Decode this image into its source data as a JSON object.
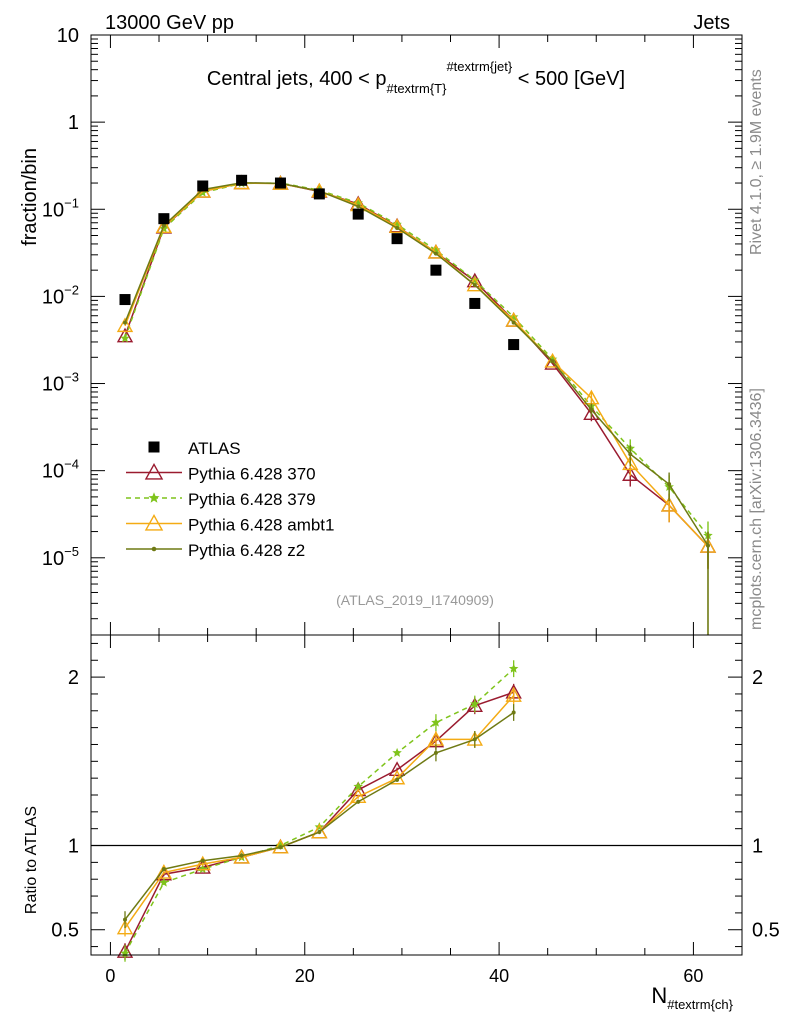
{
  "header": {
    "left": "13000 GeV pp",
    "right": "Jets"
  },
  "side_labels": {
    "rivet": "Rivet 4.1.0, ≥ 1.9M events",
    "mcplots": "mcplots.cern.ch [arXiv:1306.3436]"
  },
  "analysis_id": "(ATLAS_2019_I1740909)",
  "chart_data": [
    {
      "type": "scatter",
      "name": "main",
      "title_parts": [
        "Central jets, 400 < p",
        "#textrm{T}",
        "#textrm{jet}",
        " < 500 [GeV]"
      ],
      "ylabel": "fraction/bin",
      "xlabel_parts": [
        "N",
        "#textrm{ch}"
      ],
      "yscale": "log",
      "ylim": [
        1.3e-06,
        10
      ],
      "xlim": [
        -2,
        65
      ],
      "x_ticks": [
        0,
        20,
        40,
        60
      ],
      "y_tick_labels": [
        {
          "v": 10,
          "label": "10"
        },
        {
          "v": 1,
          "label": "1"
        },
        {
          "v": 0.1,
          "base": "10",
          "exp": "−1"
        },
        {
          "v": 0.01,
          "base": "10",
          "exp": "−2"
        },
        {
          "v": 0.001,
          "base": "10",
          "exp": "−3"
        },
        {
          "v": 0.0001,
          "base": "10",
          "exp": "−4"
        },
        {
          "v": 1e-05,
          "base": "10",
          "exp": "−5"
        }
      ],
      "x": [
        1.5,
        5.5,
        9.5,
        13.5,
        17.5,
        21.5,
        25.5,
        29.5,
        33.5,
        37.5,
        41.5,
        45.5,
        49.5,
        53.5,
        57.5,
        61.5
      ],
      "data": {
        "name": "ATLAS",
        "y": [
          0.0092,
          0.078,
          0.185,
          0.215,
          0.2,
          0.15,
          0.088,
          0.046,
          0.02,
          0.0083,
          0.0028
        ]
      },
      "series": [
        {
          "name": "Pythia 6.428 370",
          "color": "#9a1b2f",
          "marker": "triangle-open",
          "dash": "",
          "y": [
            0.0035,
            0.062,
            0.16,
            0.2,
            0.198,
            0.16,
            0.115,
            0.064,
            0.032,
            0.015,
            0.0053,
            0.0017,
            0.00045,
            9e-05,
            4e-05,
            1.35e-05
          ]
        },
        {
          "name": "Pythia 6.428 379",
          "color": "#7fc41c",
          "marker": "star",
          "dash": "5,4",
          "y": [
            0.0033,
            0.06,
            0.155,
            0.198,
            0.2,
            0.166,
            0.118,
            0.067,
            0.034,
            0.0153,
            0.0058,
            0.0019,
            0.00055,
            0.00018,
            6.5e-05,
            1.8e-05
          ]
        },
        {
          "name": "Pythia 6.428 ambt1",
          "color": "#f4ab14",
          "marker": "triangle-open",
          "dash": "",
          "y": [
            0.0046,
            0.063,
            0.16,
            0.2,
            0.197,
            0.162,
            0.112,
            0.063,
            0.032,
            0.0135,
            0.0053,
            0.0018,
            0.00068,
            0.00012,
            4e-05,
            1.35e-05
          ]
        },
        {
          "name": "Pythia 6.428 z2",
          "color": "#6f7a14",
          "marker": "dot",
          "dash": "",
          "y": [
            0.005,
            0.065,
            0.168,
            0.202,
            0.198,
            0.162,
            0.108,
            0.061,
            0.031,
            0.0135,
            0.005,
            0.0018,
            0.0005,
            0.000155,
            7e-05,
            1.38e-05
          ]
        }
      ],
      "legend": [
        {
          "name": "ATLAS",
          "marker": "square"
        },
        {
          "name": "Pythia 6.428 370"
        },
        {
          "name": "Pythia 6.428 379"
        },
        {
          "name": "Pythia 6.428 ambt1"
        },
        {
          "name": "Pythia 6.428 z2"
        }
      ]
    },
    {
      "type": "line",
      "name": "ratio",
      "ylabel": "Ratio to ATLAS",
      "ylim": [
        0.35,
        2.25
      ],
      "y_ticks": [
        0.5,
        1,
        2
      ],
      "y_tick_labels": [
        "0.5",
        "1",
        "2"
      ],
      "x": [
        1.5,
        5.5,
        9.5,
        13.5,
        17.5,
        21.5,
        25.5,
        29.5,
        33.5,
        37.5,
        41.5
      ],
      "series": [
        {
          "name": "Pythia 6.428 370",
          "y": [
            0.37,
            0.83,
            0.87,
            0.93,
            0.99,
            1.08,
            1.33,
            1.45,
            1.62,
            1.83,
            1.91
          ]
        },
        {
          "name": "Pythia 6.428 379",
          "y": [
            0.36,
            0.78,
            0.86,
            0.93,
            1.0,
            1.11,
            1.35,
            1.55,
            1.73,
            1.84,
            2.05
          ]
        },
        {
          "name": "Pythia 6.428 ambt1",
          "y": [
            0.51,
            0.84,
            0.89,
            0.93,
            0.99,
            1.08,
            1.29,
            1.4,
            1.63,
            1.63,
            1.89
          ]
        },
        {
          "name": "Pythia 6.428 z2",
          "y": [
            0.56,
            0.86,
            0.91,
            0.94,
            0.99,
            1.08,
            1.26,
            1.39,
            1.55,
            1.63,
            1.79
          ]
        }
      ]
    }
  ]
}
